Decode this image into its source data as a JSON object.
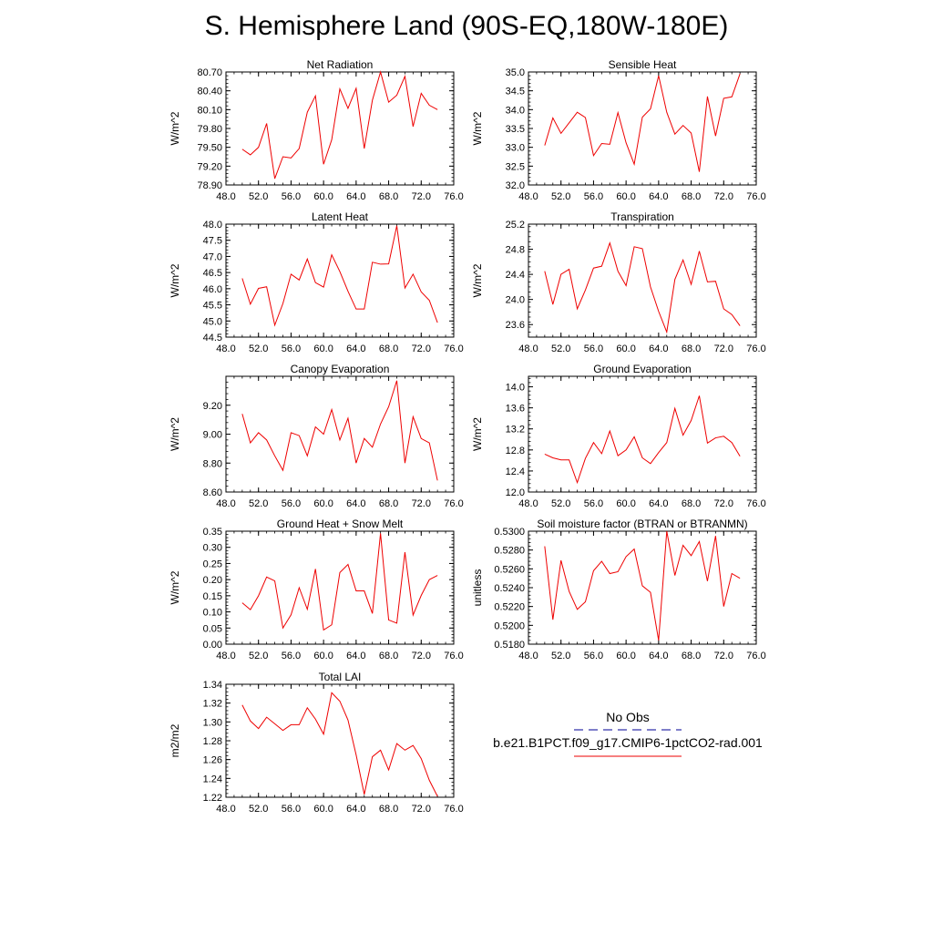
{
  "page_title": "S. Hemisphere Land (90S-EQ,180W-180E)",
  "legend": {
    "title": "No Obs",
    "obs_color": "#3333aa",
    "case_label": "b.e21.B1PCT.f09_g17.CMIP6-1pctCO2-rad.001",
    "case_color": "#ee0000"
  },
  "chart_data": [
    {
      "type": "line",
      "title": "Net Radiation",
      "ylabel": "W/m^2",
      "xlim": [
        48,
        76
      ],
      "ylim": [
        78.9,
        80.7
      ],
      "xticks": [
        "48.0",
        "52.0",
        "56.0",
        "60.0",
        "64.0",
        "68.0",
        "72.0",
        "76.0"
      ],
      "yticks": [
        "78.90",
        "79.20",
        "79.50",
        "79.80",
        "80.10",
        "80.40",
        "80.70"
      ],
      "x": [
        50,
        51,
        52,
        53,
        54,
        55,
        56,
        57,
        58,
        59,
        60,
        61,
        62,
        63,
        64,
        65,
        66,
        67,
        68,
        69,
        70,
        71,
        72,
        73,
        74
      ],
      "series": [
        {
          "values": [
            79.47,
            79.38,
            79.5,
            79.88,
            79.0,
            79.35,
            79.33,
            79.48,
            80.06,
            80.32,
            79.23,
            79.62,
            80.43,
            80.12,
            80.44,
            79.48,
            80.25,
            80.7,
            80.22,
            80.33,
            80.63,
            79.83,
            80.36,
            80.17,
            80.1
          ]
        }
      ]
    },
    {
      "type": "line",
      "title": "Sensible Heat",
      "ylabel": "W/m^2",
      "xlim": [
        48,
        76
      ],
      "ylim": [
        32.0,
        35.0
      ],
      "xticks": [
        "48.0",
        "52.0",
        "56.0",
        "60.0",
        "64.0",
        "68.0",
        "72.0",
        "76.0"
      ],
      "yticks": [
        "32.0",
        "32.5",
        "33.0",
        "33.5",
        "34.0",
        "34.5",
        "35.0"
      ],
      "x": [
        50,
        51,
        52,
        53,
        54,
        55,
        56,
        57,
        58,
        59,
        60,
        61,
        62,
        63,
        64,
        65,
        66,
        67,
        68,
        69,
        70,
        71,
        72,
        73,
        74
      ],
      "series": [
        {
          "values": [
            33.05,
            33.78,
            33.37,
            33.65,
            33.93,
            33.79,
            32.78,
            33.1,
            33.08,
            33.92,
            33.12,
            32.55,
            33.8,
            34.02,
            34.9,
            33.93,
            33.35,
            33.58,
            33.38,
            32.35,
            34.35,
            33.3,
            34.3,
            34.34,
            34.95
          ]
        }
      ]
    },
    {
      "type": "line",
      "title": "Latent Heat",
      "ylabel": "W/m^2",
      "xlim": [
        48,
        76
      ],
      "ylim": [
        44.5,
        48.0
      ],
      "xticks": [
        "48.0",
        "52.0",
        "56.0",
        "60.0",
        "64.0",
        "68.0",
        "72.0",
        "76.0"
      ],
      "yticks": [
        "44.5",
        "45.0",
        "45.5",
        "46.0",
        "46.5",
        "47.0",
        "47.5",
        "48.0"
      ],
      "x": [
        50,
        51,
        52,
        53,
        54,
        55,
        56,
        57,
        58,
        59,
        60,
        61,
        62,
        63,
        64,
        65,
        66,
        67,
        68,
        69,
        70,
        71,
        72,
        73,
        74
      ],
      "series": [
        {
          "values": [
            46.32,
            45.52,
            46.01,
            46.06,
            44.87,
            45.54,
            46.45,
            46.27,
            46.92,
            46.19,
            46.05,
            47.05,
            46.53,
            45.92,
            45.37,
            45.37,
            46.82,
            46.76,
            46.77,
            47.95,
            46.02,
            46.45,
            45.9,
            45.64,
            44.95
          ]
        }
      ]
    },
    {
      "type": "line",
      "title": "Transpiration",
      "ylabel": "W/m^2",
      "xlim": [
        48,
        76
      ],
      "ylim": [
        23.4,
        25.2
      ],
      "xticks": [
        "48.0",
        "52.0",
        "56.0",
        "60.0",
        "64.0",
        "68.0",
        "72.0",
        "76.0"
      ],
      "yticks": [
        "23.6",
        "24.0",
        "24.4",
        "24.8",
        "25.2"
      ],
      "x": [
        50,
        51,
        52,
        53,
        54,
        55,
        56,
        57,
        58,
        59,
        60,
        61,
        62,
        63,
        64,
        65,
        66,
        67,
        68,
        69,
        70,
        71,
        72,
        73,
        74
      ],
      "series": [
        {
          "values": [
            24.45,
            23.92,
            24.4,
            24.48,
            23.85,
            24.15,
            24.5,
            24.53,
            24.9,
            24.45,
            24.22,
            24.84,
            24.81,
            24.2,
            23.81,
            23.48,
            24.32,
            24.63,
            24.24,
            24.77,
            24.28,
            24.29,
            23.85,
            23.76,
            23.58
          ]
        }
      ]
    },
    {
      "type": "line",
      "title": "Canopy Evaporation",
      "ylabel": "W/m^2",
      "xlim": [
        48,
        76
      ],
      "ylim": [
        8.6,
        9.4
      ],
      "xticks": [
        "48.0",
        "52.0",
        "56.0",
        "60.0",
        "64.0",
        "68.0",
        "72.0",
        "76.0"
      ],
      "yticks": [
        "8.60",
        "8.80",
        "9.00",
        "9.20"
      ],
      "x": [
        50,
        51,
        52,
        53,
        54,
        55,
        56,
        57,
        58,
        59,
        60,
        61,
        62,
        63,
        64,
        65,
        66,
        67,
        68,
        69,
        70,
        71,
        72,
        73,
        74
      ],
      "series": [
        {
          "values": [
            9.14,
            8.94,
            9.01,
            8.96,
            8.85,
            8.75,
            9.01,
            8.99,
            8.85,
            9.05,
            9.0,
            9.17,
            8.96,
            9.11,
            8.8,
            8.97,
            8.91,
            9.07,
            9.19,
            9.37,
            8.8,
            9.12,
            8.97,
            8.94,
            8.68
          ]
        }
      ]
    },
    {
      "type": "line",
      "title": "Ground Evaporation",
      "ylabel": "W/m^2",
      "xlim": [
        48,
        76
      ],
      "ylim": [
        12.0,
        14.2
      ],
      "xticks": [
        "48.0",
        "52.0",
        "56.0",
        "60.0",
        "64.0",
        "68.0",
        "72.0",
        "76.0"
      ],
      "yticks": [
        "12.0",
        "12.4",
        "12.8",
        "13.2",
        "13.6",
        "14.0"
      ],
      "x": [
        50,
        51,
        52,
        53,
        54,
        55,
        56,
        57,
        58,
        59,
        60,
        61,
        62,
        63,
        64,
        65,
        66,
        67,
        68,
        69,
        70,
        71,
        72,
        73,
        74
      ],
      "series": [
        {
          "values": [
            12.72,
            12.65,
            12.61,
            12.61,
            12.18,
            12.64,
            12.94,
            12.73,
            13.16,
            12.69,
            12.8,
            13.05,
            12.65,
            12.54,
            12.75,
            12.94,
            13.59,
            13.08,
            13.36,
            13.83,
            12.93,
            13.03,
            13.06,
            12.94,
            12.68
          ]
        }
      ]
    },
    {
      "type": "line",
      "title": "Ground Heat + Snow Melt",
      "ylabel": "W/m^2",
      "xlim": [
        48,
        76
      ],
      "ylim": [
        0.0,
        0.35
      ],
      "xticks": [
        "48.0",
        "52.0",
        "56.0",
        "60.0",
        "64.0",
        "68.0",
        "72.0",
        "76.0"
      ],
      "yticks": [
        "0.00",
        "0.05",
        "0.10",
        "0.15",
        "0.20",
        "0.25",
        "0.30",
        "0.35"
      ],
      "x": [
        50,
        51,
        52,
        53,
        54,
        55,
        56,
        57,
        58,
        59,
        60,
        61,
        62,
        63,
        64,
        65,
        66,
        67,
        68,
        69,
        70,
        71,
        72,
        73,
        74
      ],
      "series": [
        {
          "values": [
            0.128,
            0.107,
            0.15,
            0.208,
            0.196,
            0.05,
            0.091,
            0.175,
            0.108,
            0.233,
            0.044,
            0.06,
            0.222,
            0.247,
            0.165,
            0.165,
            0.095,
            0.343,
            0.075,
            0.065,
            0.285,
            0.09,
            0.151,
            0.2,
            0.213
          ]
        }
      ]
    },
    {
      "type": "line",
      "title": "Soil moisture factor (BTRAN or BTRANMN)",
      "ylabel": "unitless",
      "xlim": [
        48,
        76
      ],
      "ylim": [
        0.518,
        0.53
      ],
      "xticks": [
        "48.0",
        "52.0",
        "56.0",
        "60.0",
        "64.0",
        "68.0",
        "72.0",
        "76.0"
      ],
      "yticks": [
        "0.5180",
        "0.5200",
        "0.5220",
        "0.5240",
        "0.5260",
        "0.5280",
        "0.5300"
      ],
      "x": [
        50,
        51,
        52,
        53,
        54,
        55,
        56,
        57,
        58,
        59,
        60,
        61,
        62,
        63,
        64,
        65,
        66,
        67,
        68,
        69,
        70,
        71,
        72,
        73,
        74
      ],
      "series": [
        {
          "values": [
            0.5284,
            0.5206,
            0.5269,
            0.5236,
            0.5217,
            0.5225,
            0.5258,
            0.5268,
            0.5255,
            0.5257,
            0.5273,
            0.5281,
            0.5242,
            0.5235,
            0.5184,
            0.53,
            0.5253,
            0.5285,
            0.5274,
            0.5289,
            0.5247,
            0.5295,
            0.522,
            0.5255,
            0.525
          ]
        }
      ]
    },
    {
      "type": "line",
      "title": "Total LAI",
      "ylabel": "m2/m2",
      "xlim": [
        48,
        76
      ],
      "ylim": [
        1.22,
        1.34
      ],
      "xticks": [
        "48.0",
        "52.0",
        "56.0",
        "60.0",
        "64.0",
        "68.0",
        "72.0",
        "76.0"
      ],
      "yticks": [
        "1.22",
        "1.24",
        "1.26",
        "1.28",
        "1.30",
        "1.32",
        "1.34"
      ],
      "x": [
        50,
        51,
        52,
        53,
        54,
        55,
        56,
        57,
        58,
        59,
        60,
        61,
        62,
        63,
        64,
        65,
        66,
        67,
        68,
        69,
        70,
        71,
        72,
        73,
        74
      ],
      "series": [
        {
          "values": [
            1.318,
            1.301,
            1.293,
            1.305,
            1.298,
            1.291,
            1.297,
            1.297,
            1.315,
            1.303,
            1.287,
            1.331,
            1.322,
            1.302,
            1.265,
            1.223,
            1.263,
            1.27,
            1.249,
            1.277,
            1.27,
            1.275,
            1.261,
            1.238,
            1.221
          ]
        }
      ]
    }
  ]
}
